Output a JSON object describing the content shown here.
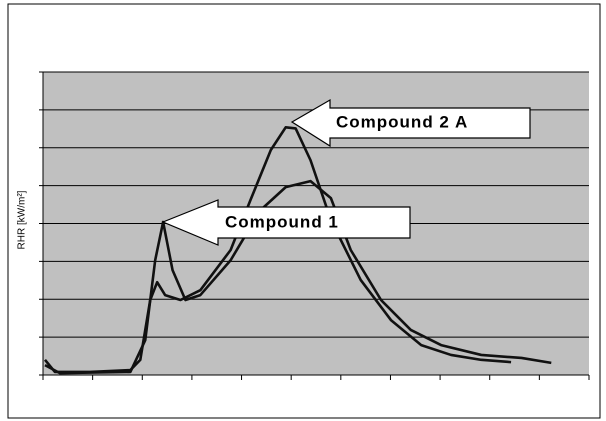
{
  "chart_data": {
    "type": "line",
    "ylabel": "RHR [kW/m²]",
    "xlim": [
      0,
      11
    ],
    "xticks": [
      0,
      1,
      2,
      3,
      4,
      5,
      6,
      7,
      8,
      9,
      10,
      11
    ],
    "ylim": [
      0,
      8
    ],
    "yticks": [
      0,
      1,
      2,
      3,
      4,
      5,
      6,
      7,
      8
    ],
    "grid": true,
    "series": [
      {
        "color": "#111111",
        "x": [
          0.04,
          0.24,
          0.95,
          1.76,
          1.96,
          2.16,
          2.3,
          2.46,
          2.77,
          3.17,
          3.78,
          4.18,
          4.59,
          4.89,
          5.09,
          5.39,
          5.8,
          6.4,
          7.01,
          7.62,
          8.22,
          8.83,
          9.43
        ],
        "values": [
          0.4,
          0.08,
          0.08,
          0.13,
          0.4,
          1.98,
          2.45,
          2.11,
          1.98,
          2.24,
          3.3,
          4.62,
          5.94,
          6.54,
          6.51,
          5.67,
          4.09,
          2.51,
          1.45,
          0.79,
          0.53,
          0.4,
          0.34
        ]
      },
      {
        "color": "#111111",
        "x": [
          0.04,
          0.34,
          1.76,
          2.06,
          2.26,
          2.42,
          2.61,
          2.87,
          3.17,
          3.78,
          4.38,
          4.89,
          5.39,
          5.8,
          6.2,
          6.81,
          7.41,
          8.02,
          8.83,
          9.64,
          10.24
        ],
        "values": [
          0.26,
          0.05,
          0.08,
          0.92,
          3.03,
          4.04,
          2.77,
          1.98,
          2.11,
          3.03,
          4.35,
          4.96,
          5.12,
          4.67,
          3.3,
          1.98,
          1.19,
          0.79,
          0.53,
          0.45,
          0.32
        ]
      }
    ],
    "annotations": [
      {
        "text": "Compound 2 A"
      },
      {
        "text": "Compound 1"
      }
    ]
  }
}
